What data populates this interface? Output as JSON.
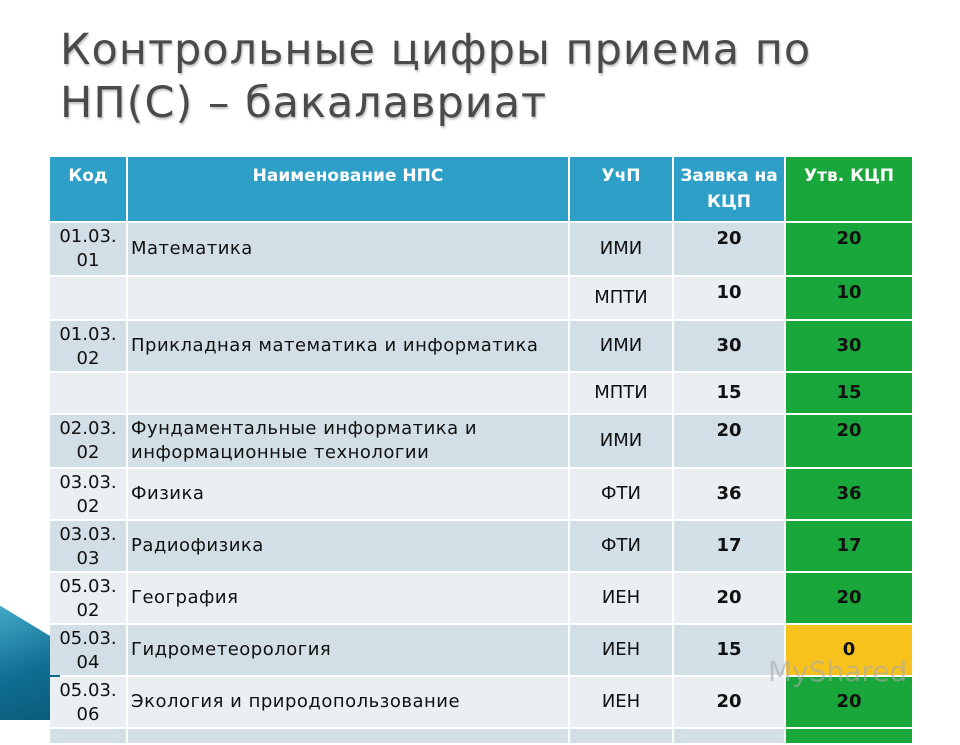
{
  "title": "Контрольные цифры приема по НП(С) – бакалавриат",
  "headers": {
    "code": "Код",
    "name": "Наименование НПС",
    "unit": "УчП",
    "request": "Заявка на КЦП",
    "approved": "Утв. КЦП"
  },
  "rows": [
    {
      "code": "01.03. 01",
      "name": "Математика",
      "unit": "ИМИ",
      "request": "20",
      "approved": "20"
    },
    {
      "code": "",
      "name": "",
      "unit": "МПТИ",
      "request": "10",
      "approved": "10"
    },
    {
      "code": "01.03. 02",
      "name": "Прикладная математика и информатика",
      "unit": "ИМИ",
      "request": "30",
      "approved": "30"
    },
    {
      "code": "",
      "name": "",
      "unit": "МПТИ",
      "request": "15",
      "approved": "15"
    },
    {
      "code": "02.03. 02",
      "name": "Фундаментальные информатика и информационные технологии",
      "unit": "ИМИ",
      "request": "20",
      "approved": "20"
    },
    {
      "code": "03.03. 02",
      "name": "Физика",
      "unit": "ФТИ",
      "request": "36",
      "approved": "36"
    },
    {
      "code": "03.03. 03",
      "name": "Радиофизика",
      "unit": "ФТИ",
      "request": "17",
      "approved": "17"
    },
    {
      "code": "05.03. 02",
      "name": "География",
      "unit": "ИЕН",
      "request": "20",
      "approved": "20"
    },
    {
      "code": "05.03. 04",
      "name": "Гидрометеорология",
      "unit": "ИЕН",
      "request": "15",
      "approved": "0"
    },
    {
      "code": "05.03. 06",
      "name": "Экология и природопользование",
      "unit": "ИЕН",
      "request": "20",
      "approved": "20"
    }
  ],
  "watermark": "MyShared",
  "colors": {
    "header": "#2e9fc7",
    "approved": "#19a63a",
    "warning": "#f7c21b"
  }
}
